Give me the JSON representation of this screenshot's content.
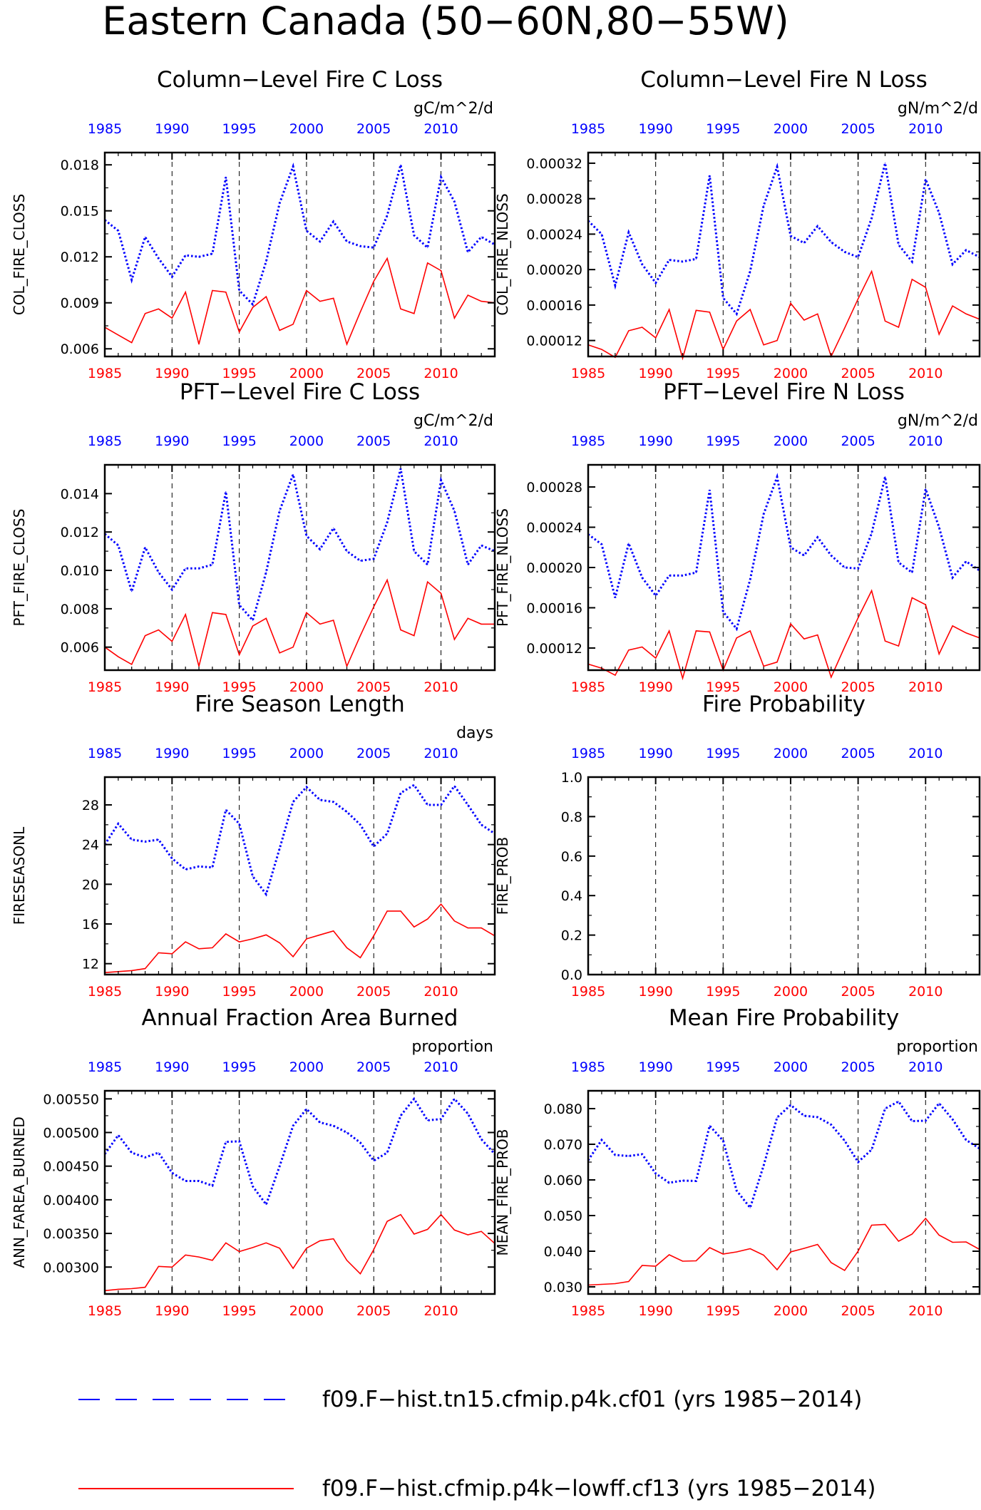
{
  "figure_title": "Eastern Canada (50−60N,80−55W)",
  "colors": {
    "blue": "#0000ff",
    "red": "#ff0000",
    "axis": "#000000",
    "grid": "#000000"
  },
  "legend": [
    {
      "label": "f09.F−hist.tn15.cfmip.p4k.cf01 (yrs 1985−2014)",
      "color": "#0000ff",
      "style": "dashed"
    },
    {
      "label": "f09.F−hist.cfmip.p4k−lowff.cf13 (yrs 1985−2014)",
      "color": "#ff0000",
      "style": "solid"
    }
  ],
  "chart_data": [
    {
      "type": "line",
      "title": "Column−Level Fire C Loss",
      "units": "gC/m^2/d",
      "ylabel": "COL_FIRE_CLOSS",
      "xlim": [
        1985,
        2014
      ],
      "ylim": [
        0.0055,
        0.0188
      ],
      "xticks": [
        1985,
        1990,
        1995,
        2000,
        2005,
        2010
      ],
      "yticks": [
        0.006,
        0.009,
        0.012,
        0.015,
        0.018
      ],
      "ytick_labels": [
        "0.006",
        "0.009",
        "0.012",
        "0.015",
        "0.018"
      ],
      "x": [
        1985,
        1986,
        1987,
        1988,
        1989,
        1990,
        1991,
        1992,
        1993,
        1994,
        1995,
        1996,
        1997,
        1998,
        1999,
        2000,
        2001,
        2002,
        2003,
        2004,
        2005,
        2006,
        2007,
        2008,
        2009,
        2010,
        2011,
        2012,
        2013,
        2014
      ],
      "series": [
        {
          "color": "blue",
          "style": "dotted",
          "values": [
            0.0144,
            0.0137,
            0.0105,
            0.0133,
            0.0119,
            0.0107,
            0.0121,
            0.012,
            0.0122,
            0.0172,
            0.0098,
            0.0089,
            0.0117,
            0.0155,
            0.0179,
            0.0137,
            0.013,
            0.0143,
            0.013,
            0.0127,
            0.0126,
            0.0147,
            0.018,
            0.0134,
            0.0126,
            0.0172,
            0.0156,
            0.0123,
            0.0133,
            0.0128
          ]
        },
        {
          "color": "red",
          "style": "solid",
          "values": [
            0.0074,
            0.0069,
            0.0064,
            0.0083,
            0.0086,
            0.008,
            0.0097,
            0.0063,
            0.0098,
            0.0097,
            0.0071,
            0.0087,
            0.0094,
            0.0072,
            0.0076,
            0.0098,
            0.0091,
            0.0093,
            0.0063,
            0.0084,
            0.0104,
            0.0119,
            0.0086,
            0.0083,
            0.0116,
            0.0111,
            0.008,
            0.0095,
            0.0091,
            0.009
          ]
        }
      ]
    },
    {
      "type": "line",
      "title": "Column−Level Fire N Loss",
      "units": "gN/m^2/d",
      "ylabel": "COL_FIRE_NLOSS",
      "xlim": [
        1985,
        2014
      ],
      "ylim": [
        0.000102,
        0.000332
      ],
      "xticks": [
        1985,
        1990,
        1995,
        2000,
        2005,
        2010
      ],
      "yticks": [
        0.00012,
        0.00016,
        0.0002,
        0.00024,
        0.00028,
        0.00032
      ],
      "ytick_labels": [
        "0.00012",
        "0.00016",
        "0.00020",
        "0.00024",
        "0.00028",
        "0.00032"
      ],
      "x": [
        1985,
        1986,
        1987,
        1988,
        1989,
        1990,
        1991,
        1992,
        1993,
        1994,
        1995,
        1996,
        1997,
        1998,
        1999,
        2000,
        2001,
        2002,
        2003,
        2004,
        2005,
        2006,
        2007,
        2008,
        2009,
        2010,
        2011,
        2012,
        2013,
        2014
      ],
      "series": [
        {
          "color": "blue",
          "style": "dotted",
          "values": [
            0.000255,
            0.00024,
            0.000182,
            0.000242,
            0.000206,
            0.000185,
            0.000211,
            0.000209,
            0.000212,
            0.000306,
            0.000168,
            0.00015,
            0.000198,
            0.000272,
            0.000316,
            0.000238,
            0.00023,
            0.000249,
            0.000231,
            0.00022,
            0.000214,
            0.000258,
            0.00032,
            0.000228,
            0.000209,
            0.000302,
            0.000264,
            0.000206,
            0.000222,
            0.000214
          ]
        },
        {
          "color": "red",
          "style": "solid",
          "values": [
            0.000115,
            0.00011,
            0.000101,
            0.000131,
            0.000135,
            0.000123,
            0.000155,
            0.0001,
            0.000154,
            0.000152,
            0.00011,
            0.000142,
            0.000155,
            0.000115,
            0.00012,
            0.000162,
            0.000143,
            0.00015,
            0.000102,
            0.000134,
            0.000167,
            0.000198,
            0.000142,
            0.000135,
            0.000189,
            0.00018,
            0.000127,
            0.000159,
            0.00015,
            0.000144
          ]
        }
      ]
    },
    {
      "type": "line",
      "title": "PFT−Level Fire C Loss",
      "units": "gC/m^2/d",
      "ylabel": "PFT_FIRE_CLOSS",
      "xlim": [
        1985,
        2014
      ],
      "ylim": [
        0.0048,
        0.0155
      ],
      "xticks": [
        1985,
        1990,
        1995,
        2000,
        2005,
        2010
      ],
      "yticks": [
        0.006,
        0.008,
        0.01,
        0.012,
        0.014
      ],
      "ytick_labels": [
        "0.006",
        "0.008",
        "0.010",
        "0.012",
        "0.014"
      ],
      "x": [
        1985,
        1986,
        1987,
        1988,
        1989,
        1990,
        1991,
        1992,
        1993,
        1994,
        1995,
        1996,
        1997,
        1998,
        1999,
        2000,
        2001,
        2002,
        2003,
        2004,
        2005,
        2006,
        2007,
        2008,
        2009,
        2010,
        2011,
        2012,
        2013,
        2014
      ],
      "series": [
        {
          "color": "blue",
          "style": "dotted",
          "values": [
            0.0119,
            0.0113,
            0.0089,
            0.0112,
            0.0099,
            0.009,
            0.0101,
            0.0101,
            0.0103,
            0.0141,
            0.0082,
            0.0074,
            0.0099,
            0.0131,
            0.015,
            0.0118,
            0.0111,
            0.0122,
            0.011,
            0.0105,
            0.0106,
            0.0125,
            0.0153,
            0.011,
            0.0103,
            0.0147,
            0.0131,
            0.0103,
            0.0113,
            0.011
          ]
        },
        {
          "color": "red",
          "style": "solid",
          "values": [
            0.006,
            0.0055,
            0.0051,
            0.0066,
            0.0069,
            0.0063,
            0.0077,
            0.005,
            0.0078,
            0.0077,
            0.0056,
            0.0071,
            0.0075,
            0.0057,
            0.006,
            0.0078,
            0.0072,
            0.0074,
            0.005,
            0.0066,
            0.0081,
            0.0095,
            0.0069,
            0.0066,
            0.0094,
            0.0088,
            0.0064,
            0.0075,
            0.0072,
            0.0072
          ]
        }
      ]
    },
    {
      "type": "line",
      "title": "PFT−Level Fire N Loss",
      "units": "gN/m^2/d",
      "ylabel": "PFT_FIRE_NLOSS",
      "xlim": [
        1985,
        2014
      ],
      "ylim": [
        9.8e-05,
        0.000302
      ],
      "xticks": [
        1985,
        1990,
        1995,
        2000,
        2005,
        2010
      ],
      "yticks": [
        0.00012,
        0.00016,
        0.0002,
        0.00024,
        0.00028
      ],
      "ytick_labels": [
        "0.00012",
        "0.00016",
        "0.00020",
        "0.00024",
        "0.00028"
      ],
      "x": [
        1985,
        1986,
        1987,
        1988,
        1989,
        1990,
        1991,
        1992,
        1993,
        1994,
        1995,
        1996,
        1997,
        1998,
        1999,
        2000,
        2001,
        2002,
        2003,
        2004,
        2005,
        2006,
        2007,
        2008,
        2009,
        2010,
        2011,
        2012,
        2013,
        2014
      ],
      "series": [
        {
          "color": "blue",
          "style": "dotted",
          "values": [
            0.000233,
            0.000223,
            0.00017,
            0.000224,
            0.00019,
            0.000172,
            0.000192,
            0.000192,
            0.000195,
            0.000277,
            0.000156,
            0.000139,
            0.000188,
            0.000253,
            0.00029,
            0.00022,
            0.000212,
            0.00023,
            0.000212,
            0.0002,
            0.000199,
            0.000234,
            0.00029,
            0.000205,
            0.000195,
            0.000278,
            0.00024,
            0.00019,
            0.000206,
            0.000197
          ]
        },
        {
          "color": "red",
          "style": "solid",
          "values": [
            0.000104,
            0.0001,
            9.3e-05,
            0.000118,
            0.000121,
            0.00011,
            0.000137,
            9e-05,
            0.000137,
            0.000136,
            9.8e-05,
            0.00013,
            0.000137,
            0.000102,
            0.000106,
            0.000144,
            0.000129,
            0.000133,
            9.1e-05,
            0.000121,
            0.00015,
            0.000177,
            0.000127,
            0.000122,
            0.00017,
            0.000163,
            0.000114,
            0.000142,
            0.000135,
            0.00013
          ]
        }
      ]
    },
    {
      "type": "line",
      "title": "Fire Season Length",
      "units": "days",
      "ylabel": "FIRESEASONL",
      "xlim": [
        1985,
        2014
      ],
      "ylim": [
        10.9,
        30.8
      ],
      "xticks": [
        1985,
        1990,
        1995,
        2000,
        2005,
        2010
      ],
      "yticks": [
        12,
        16,
        20,
        24,
        28
      ],
      "ytick_labels": [
        "12",
        "16",
        "20",
        "24",
        "28"
      ],
      "x": [
        1985,
        1986,
        1987,
        1988,
        1989,
        1990,
        1991,
        1992,
        1993,
        1994,
        1995,
        1996,
        1997,
        1998,
        1999,
        2000,
        2001,
        2002,
        2003,
        2004,
        2005,
        2006,
        2007,
        2008,
        2009,
        2010,
        2011,
        2012,
        2013,
        2014
      ],
      "series": [
        {
          "color": "blue",
          "style": "dotted",
          "values": [
            24.0,
            26.1,
            24.5,
            24.3,
            24.5,
            22.6,
            21.5,
            21.8,
            21.7,
            27.5,
            26.1,
            20.8,
            19.0,
            23.6,
            28.3,
            29.8,
            28.5,
            28.3,
            27.3,
            26.0,
            23.8,
            25.1,
            29.2,
            30.0,
            28.0,
            28.0,
            29.9,
            28.0,
            26.0,
            25.1
          ]
        },
        {
          "color": "red",
          "style": "solid",
          "values": [
            11.1,
            11.2,
            11.3,
            11.5,
            13.1,
            13.0,
            14.2,
            13.5,
            13.6,
            15.0,
            14.2,
            14.5,
            14.9,
            14.1,
            12.7,
            14.5,
            14.9,
            15.3,
            13.6,
            12.6,
            14.8,
            17.3,
            17.3,
            15.7,
            16.5,
            18.0,
            16.3,
            15.6,
            15.6,
            14.8
          ]
        }
      ]
    },
    {
      "type": "line",
      "title": "Fire Probability",
      "units": "",
      "ylabel": "FIRE_PROB",
      "xlim": [
        1985,
        2014
      ],
      "ylim": [
        0,
        1
      ],
      "xticks": [
        1985,
        1990,
        1995,
        2000,
        2005,
        2010
      ],
      "yticks": [
        0,
        0.2,
        0.4,
        0.6,
        0.8,
        1
      ],
      "ytick_labels": [
        "0.0",
        "0.2",
        "0.4",
        "0.6",
        "0.8",
        "1.0"
      ],
      "x": [],
      "series": []
    },
    {
      "type": "line",
      "title": "Annual Fraction Area Burned",
      "units": "proportion",
      "ylabel": "ANN_FAREA_BURNED",
      "xlim": [
        1985,
        2014
      ],
      "ylim": [
        0.0026,
        0.00562
      ],
      "xticks": [
        1985,
        1990,
        1995,
        2000,
        2005,
        2010
      ],
      "yticks": [
        0.003,
        0.0035,
        0.004,
        0.0045,
        0.005,
        0.0055
      ],
      "ytick_labels": [
        "0.00300",
        "0.00350",
        "0.00400",
        "0.00450",
        "0.00500",
        "0.00550"
      ],
      "x": [
        1985,
        1986,
        1987,
        1988,
        1989,
        1990,
        1991,
        1992,
        1993,
        1994,
        1995,
        1996,
        1997,
        1998,
        1999,
        2000,
        2001,
        2002,
        2003,
        2004,
        2005,
        2006,
        2007,
        2008,
        2009,
        2010,
        2011,
        2012,
        2013,
        2014
      ],
      "series": [
        {
          "color": "blue",
          "style": "dotted",
          "values": [
            0.00468,
            0.00496,
            0.0047,
            0.00463,
            0.0047,
            0.0044,
            0.00428,
            0.00428,
            0.00421,
            0.00486,
            0.00487,
            0.0042,
            0.00393,
            0.0045,
            0.0051,
            0.00535,
            0.00515,
            0.0051,
            0.005,
            0.00485,
            0.00458,
            0.0047,
            0.00525,
            0.0055,
            0.00518,
            0.0052,
            0.0055,
            0.00528,
            0.0049,
            0.00468
          ]
        },
        {
          "color": "red",
          "style": "solid",
          "values": [
            0.00265,
            0.00267,
            0.00268,
            0.0027,
            0.00301,
            0.003,
            0.00318,
            0.00315,
            0.0031,
            0.00336,
            0.00323,
            0.00329,
            0.00336,
            0.00328,
            0.00298,
            0.00328,
            0.00339,
            0.00342,
            0.0031,
            0.0029,
            0.00326,
            0.00368,
            0.00378,
            0.00349,
            0.00356,
            0.00378,
            0.00355,
            0.00348,
            0.00353,
            0.00335
          ]
        }
      ]
    },
    {
      "type": "line",
      "title": "Mean Fire Probability",
      "units": "proportion",
      "ylabel": "MEAN_FIRE_PROB",
      "xlim": [
        1985,
        2014
      ],
      "ylim": [
        0.028,
        0.085
      ],
      "xticks": [
        1985,
        1990,
        1995,
        2000,
        2005,
        2010
      ],
      "yticks": [
        0.03,
        0.04,
        0.05,
        0.06,
        0.07,
        0.08
      ],
      "ytick_labels": [
        "0.030",
        "0.040",
        "0.050",
        "0.060",
        "0.070",
        "0.080"
      ],
      "x": [
        1985,
        1986,
        1987,
        1988,
        1989,
        1990,
        1991,
        1992,
        1993,
        1994,
        1995,
        1996,
        1997,
        1998,
        1999,
        2000,
        2001,
        2002,
        2003,
        2004,
        2005,
        2006,
        2007,
        2008,
        2009,
        2010,
        2011,
        2012,
        2013,
        2014
      ],
      "series": [
        {
          "color": "blue",
          "style": "dotted",
          "values": [
            0.0655,
            0.0712,
            0.067,
            0.0667,
            0.0672,
            0.0618,
            0.0592,
            0.0598,
            0.0597,
            0.0752,
            0.071,
            0.057,
            0.0522,
            0.064,
            0.0775,
            0.081,
            0.078,
            0.0776,
            0.0755,
            0.071,
            0.065,
            0.0685,
            0.08,
            0.082,
            0.0765,
            0.0766,
            0.0815,
            0.077,
            0.0712,
            0.0688
          ]
        },
        {
          "color": "red",
          "style": "solid",
          "values": [
            0.0305,
            0.0307,
            0.0309,
            0.0315,
            0.036,
            0.0358,
            0.039,
            0.0372,
            0.0373,
            0.041,
            0.0392,
            0.0398,
            0.0407,
            0.0389,
            0.0348,
            0.0398,
            0.0408,
            0.0419,
            0.0368,
            0.0346,
            0.04,
            0.0473,
            0.0475,
            0.0428,
            0.0448,
            0.0492,
            0.0445,
            0.0425,
            0.0426,
            0.0405
          ]
        }
      ]
    }
  ]
}
